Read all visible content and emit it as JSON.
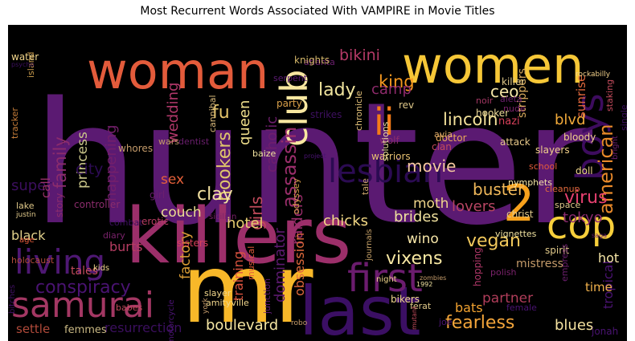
{
  "title": "Most Recurrent Words Associated With VAMPIRE in Movie Titles",
  "background": "#000000",
  "words": [
    {
      "text": "hunter",
      "color": "#5b1a72"
    },
    {
      "text": "killers",
      "color": "#9c2f6a"
    },
    {
      "text": "mr",
      "color": "#f8b829"
    },
    {
      "text": "woman",
      "color": "#e35b3b"
    },
    {
      "text": "women",
      "color": "#f6c737"
    },
    {
      "text": "last",
      "color": "#3b0f64"
    },
    {
      "text": "2",
      "color": "#f7a11c"
    },
    {
      "text": "cop",
      "color": "#f7cf3b"
    },
    {
      "text": "living",
      "color": "#4e1873"
    },
    {
      "text": "samurai",
      "color": "#a33763"
    },
    {
      "text": "first",
      "color": "#6b1c6e"
    },
    {
      "text": "club",
      "color": "#f8e7a0"
    },
    {
      "text": "ii",
      "color": "#f57b17"
    },
    {
      "text": "boys",
      "color": "#3d0c5e"
    },
    {
      "text": "lesbian",
      "color": "#2b0b52"
    },
    {
      "text": "american",
      "color": "#e8892a"
    },
    {
      "text": "lincoln",
      "color": "#f3e19a"
    },
    {
      "text": "conspiracy",
      "color": "#4a1372"
    },
    {
      "text": "fearless",
      "color": "#f2a43a"
    },
    {
      "text": "vixens",
      "color": "#f7e7a2"
    },
    {
      "text": "bikini",
      "color": "#b53a67"
    },
    {
      "text": "lady",
      "color": "#f0e49e"
    },
    {
      "text": "king",
      "color": "#f6981f"
    },
    {
      "text": "family",
      "color": "#8b2c6c"
    },
    {
      "text": "princess",
      "color": "#c9c589"
    },
    {
      "text": "happening",
      "color": "#731f6b"
    },
    {
      "text": "wedding",
      "color": "#b1386a"
    },
    {
      "text": "fu",
      "color": "#e4c46a"
    },
    {
      "text": "hookers",
      "color": "#e0c66b"
    },
    {
      "text": "queen",
      "color": "#f0df8c"
    },
    {
      "text": "catholic",
      "color": "#6f1e6e"
    },
    {
      "text": "assassin",
      "color": "#9a2e6b"
    },
    {
      "text": "girls",
      "color": "#c24b5c"
    },
    {
      "text": "clay",
      "color": "#f3e1a1"
    },
    {
      "text": "sex",
      "color": "#e6603a"
    },
    {
      "text": "couch",
      "color": "#e9dc91"
    },
    {
      "text": "hotel",
      "color": "#e6cc70"
    },
    {
      "text": "factory",
      "color": "#dc9e35"
    },
    {
      "text": "burts",
      "color": "#b63d62"
    },
    {
      "text": "black",
      "color": "#e3d28c"
    },
    {
      "text": "super",
      "color": "#3c0f5e"
    },
    {
      "text": "call",
      "color": "#9a326b"
    },
    {
      "text": "city",
      "color": "#2d0b55"
    },
    {
      "text": "movie",
      "color": "#f6c9a0"
    },
    {
      "text": "buster",
      "color": "#f0b85a"
    },
    {
      "text": "lovers",
      "color": "#b74563"
    },
    {
      "text": "virus",
      "color": "#e5406f"
    },
    {
      "text": "moth",
      "color": "#f0d68c"
    },
    {
      "text": "brides",
      "color": "#f0e19e"
    },
    {
      "text": "chicks",
      "color": "#f5da86"
    },
    {
      "text": "raiders",
      "color": "#9a2d6b"
    },
    {
      "text": "dominator",
      "color": "#5c1a6f"
    },
    {
      "text": "obsession",
      "color": "#e06a3c"
    },
    {
      "text": "training",
      "color": "#d9533f"
    },
    {
      "text": "boulevard",
      "color": "#f6e7a4"
    },
    {
      "text": "resurrection",
      "color": "#3b0f5e"
    },
    {
      "text": "settle",
      "color": "#b04a3a"
    },
    {
      "text": "femmes",
      "color": "#c9b883"
    },
    {
      "text": "vegan",
      "color": "#f2c95c"
    },
    {
      "text": "wino",
      "color": "#f7e6a8"
    },
    {
      "text": "partner",
      "color": "#b03d5a"
    },
    {
      "text": "bats",
      "color": "#f2a230"
    },
    {
      "text": "blues",
      "color": "#f5e2a0"
    },
    {
      "text": "tokyo",
      "color": "#8a2a6e"
    },
    {
      "text": "ceo",
      "color": "#f6e6a7"
    },
    {
      "text": "camp",
      "color": "#8e2a6b"
    },
    {
      "text": "sunrise",
      "color": "#e0673c"
    },
    {
      "text": "blvd",
      "color": "#f0a93a"
    },
    {
      "text": "strippers",
      "color": "#d6a85c"
    },
    {
      "text": "tropical",
      "color": "#4a1372"
    },
    {
      "text": "time",
      "color": "#f2b24c"
    },
    {
      "text": "hot",
      "color": "#f6e6a7"
    },
    {
      "text": "mistress",
      "color": "#c49b6a"
    },
    {
      "text": "jonah",
      "color": "#4a1372"
    },
    {
      "text": "atlanta",
      "color": "#6b1f6e"
    },
    {
      "text": "serpent",
      "color": "#5b1a72"
    },
    {
      "text": "knights",
      "color": "#d5b86a"
    },
    {
      "text": "island",
      "color": "#c3974b"
    },
    {
      "text": "water",
      "color": "#f0d48a"
    },
    {
      "text": "tracker",
      "color": "#c77e3a"
    },
    {
      "text": "party",
      "color": "#d9a04a"
    },
    {
      "text": "strikes",
      "color": "#3e1060"
    },
    {
      "text": "cannibal",
      "color": "#d9b97a"
    },
    {
      "text": "rev",
      "color": "#e0c98a"
    },
    {
      "text": "chronicle",
      "color": "#e3c27a"
    },
    {
      "text": "hooker",
      "color": "#f0dc9a"
    },
    {
      "text": "noir",
      "color": "#a33763"
    },
    {
      "text": "nude",
      "color": "#7a226b"
    },
    {
      "text": "nazi",
      "color": "#d6405a"
    },
    {
      "text": "doctor",
      "color": "#e8a85a"
    },
    {
      "text": "wolf",
      "color": "#8b2c6c"
    },
    {
      "text": "warriors",
      "color": "#e7c070"
    },
    {
      "text": "clan",
      "color": "#c24b5c"
    },
    {
      "text": "attack",
      "color": "#e8c98a"
    },
    {
      "text": "solutions",
      "color": "#f0e2a0"
    },
    {
      "text": "avia",
      "color": "#e6b06a"
    },
    {
      "text": "aleta",
      "color": "#6b1f6e"
    },
    {
      "text": "killer",
      "color": "#e0c98a"
    },
    {
      "text": "rockabilly",
      "color": "#f2d18a"
    },
    {
      "text": "staking",
      "color": "#c24b5c"
    },
    {
      "text": "single",
      "color": "#3e1060"
    },
    {
      "text": "bloody",
      "color": "#f2d18a"
    },
    {
      "text": "slayers",
      "color": "#f2d18a"
    },
    {
      "text": "nymphets",
      "color": "#f6e6a7"
    },
    {
      "text": "cleanup",
      "color": "#e06a3c"
    },
    {
      "text": "doll",
      "color": "#f0d68c"
    },
    {
      "text": "school",
      "color": "#e35b3b"
    },
    {
      "text": "space",
      "color": "#e0c98a"
    },
    {
      "text": "christ",
      "color": "#e0c98a"
    },
    {
      "text": "vignettes",
      "color": "#f0e2a0"
    },
    {
      "text": "spirit",
      "color": "#e0c98a"
    },
    {
      "text": "hopping",
      "color": "#b1386a"
    },
    {
      "text": "empress",
      "color": "#6b1f6e"
    },
    {
      "text": "polish",
      "color": "#7a226b"
    },
    {
      "text": "female",
      "color": "#4a1372"
    },
    {
      "text": "ferat",
      "color": "#e0c98a"
    },
    {
      "text": "bikers",
      "color": "#f0d68c"
    },
    {
      "text": "joe",
      "color": "#4a1372"
    },
    {
      "text": "journals",
      "color": "#c9a36a"
    },
    {
      "text": "odyssey",
      "color": "#d9a04a"
    },
    {
      "text": "whores",
      "color": "#c49b6a"
    },
    {
      "text": "wars",
      "color": "#c49b6a"
    },
    {
      "text": "dentist",
      "color": "#6b1f6e"
    },
    {
      "text": "baize",
      "color": "#f0e2a0"
    },
    {
      "text": "project",
      "color": "#4a1372"
    },
    {
      "text": "controller",
      "color": "#8b2c6c"
    },
    {
      "text": "girl",
      "color": "#6b1f6e"
    },
    {
      "text": "combat",
      "color": "#3e1060"
    },
    {
      "text": "erotic",
      "color": "#b63d62"
    },
    {
      "text": "diary",
      "color": "#7a226b"
    },
    {
      "text": "sisters",
      "color": "#d6405a"
    },
    {
      "text": "holocaust",
      "color": "#b04a3a"
    },
    {
      "text": "tales",
      "color": "#c24b5c"
    },
    {
      "text": "kids",
      "color": "#f0d68c"
    },
    {
      "text": "babes",
      "color": "#c24b5c"
    },
    {
      "text": "motorcycle",
      "color": "#4a1372"
    },
    {
      "text": "amityville",
      "color": "#f0d68c"
    },
    {
      "text": "slayer",
      "color": "#f0d68c"
    },
    {
      "text": "musical",
      "color": "#e35b3b"
    },
    {
      "text": "junction",
      "color": "#5b1a72"
    },
    {
      "text": "sicilian",
      "color": "#7a226b"
    },
    {
      "text": "lake",
      "color": "#e0c98a"
    },
    {
      "text": "justin",
      "color": "#e0c98a"
    },
    {
      "text": "story",
      "color": "#8b2c6c"
    },
    {
      "text": "age",
      "color": "#e35b3b"
    },
    {
      "text": "bitches",
      "color": "#3e1060"
    },
    {
      "text": "robo",
      "color": "#c49b6a"
    },
    {
      "text": "saga",
      "color": "#6b1f6e"
    },
    {
      "text": "bright",
      "color": "#6b1f6e"
    },
    {
      "text": "tale",
      "color": "#c9a36a"
    },
    {
      "text": "psycho",
      "color": "#3e1060"
    },
    {
      "text": "york",
      "color": "#c49b6a"
    },
    {
      "text": "1992",
      "color": "#f0e2a0"
    },
    {
      "text": "night",
      "color": "#f0d68c"
    },
    {
      "text": "zombies",
      "color": "#c49b6a"
    },
    {
      "text": "mutant",
      "color": "#c24b5c"
    }
  ]
}
